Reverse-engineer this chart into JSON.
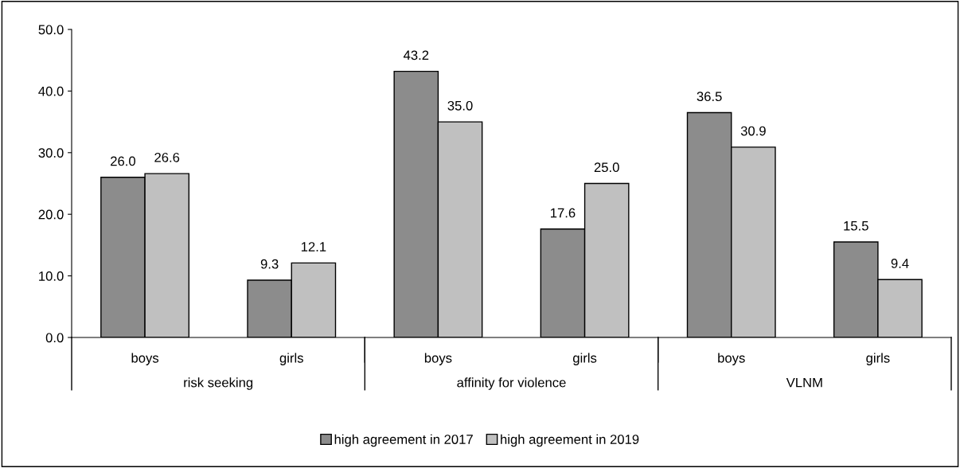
{
  "chart_data": {
    "type": "bar",
    "categories": [
      "boys",
      "girls",
      "boys",
      "girls",
      "boys",
      "girls"
    ],
    "annotations": [
      "risk seeking",
      "affinity for violence",
      "VLNM"
    ],
    "series": [
      {
        "name": "high agreement in 2017",
        "color": "#8c8c8c",
        "values": [
          26.0,
          9.3,
          43.2,
          17.6,
          36.5,
          15.5
        ],
        "value_labels": [
          "26.0",
          "9.3",
          "43.2",
          "17.6",
          "36.5",
          "15.5"
        ]
      },
      {
        "name": "high agreement in 2019",
        "color": "#c0c0c0",
        "values": [
          26.6,
          12.1,
          35.0,
          25.0,
          30.9,
          9.4
        ],
        "value_labels": [
          "26.6",
          "12.1",
          "35.0",
          "25.0",
          "30.9",
          "9.4"
        ]
      }
    ],
    "ylim": [
      0,
      50
    ],
    "yticks": [
      {
        "value": 0,
        "label": "0.0"
      },
      {
        "value": 10,
        "label": "10.0"
      },
      {
        "value": 20,
        "label": "20.0"
      },
      {
        "value": 30,
        "label": "30.0"
      },
      {
        "value": 40,
        "label": "40.0"
      },
      {
        "value": 50,
        "label": "50.0"
      }
    ],
    "grid": false,
    "legend": "bottom"
  }
}
